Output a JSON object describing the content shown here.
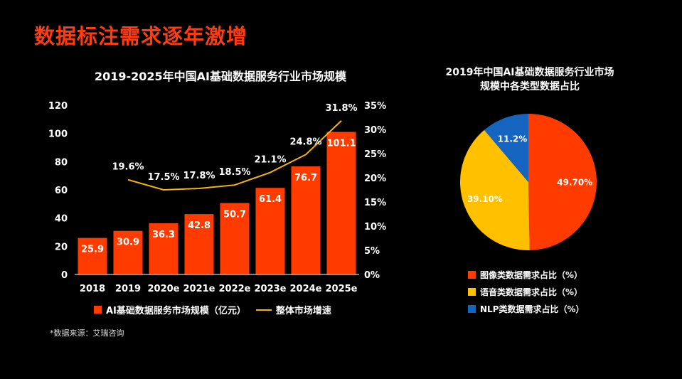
{
  "page": {
    "title": "数据标注需求逐年激增",
    "source_note": "*数据来源：艾瑞咨询",
    "colors": {
      "accent": "#ff3b10",
      "bar": "#ff3b00",
      "line": "#f5b700",
      "blue": "#1565c0"
    }
  },
  "chart_data": [
    {
      "type": "bar",
      "title": "2019-2025年中国AI基础数据服务行业市场规模",
      "categories": [
        "2018",
        "2019",
        "2020e",
        "2021e",
        "2022e",
        "2023e",
        "2024e",
        "2025e"
      ],
      "series": [
        {
          "name": "AI基础数据服务市场规模（亿元）",
          "type": "bar",
          "axis": "left",
          "values": [
            25.9,
            30.9,
            36.3,
            42.8,
            50.7,
            61.4,
            76.7,
            101.1
          ],
          "labels": [
            "25.9",
            "30.9",
            "36.3",
            "42.8",
            "50.7",
            "61.4",
            "76.7",
            "101.1"
          ]
        },
        {
          "name": "整体市场增速",
          "type": "line",
          "axis": "right",
          "values": [
            null,
            19.6,
            17.5,
            17.8,
            18.5,
            21.1,
            24.8,
            31.8
          ],
          "labels": [
            "",
            "19.6%",
            "17.5%",
            "17.8%",
            "18.5%",
            "21.1%",
            "24.8%",
            "31.8%"
          ]
        }
      ],
      "y_left": {
        "range": [
          0,
          120
        ],
        "ticks": [
          "0",
          "20",
          "40",
          "60",
          "80",
          "100",
          "120"
        ],
        "tick_values": [
          0,
          20,
          40,
          60,
          80,
          100,
          120
        ]
      },
      "y_right": {
        "range": [
          0,
          35
        ],
        "ticks": [
          "0%",
          "5%",
          "10%",
          "15%",
          "20%",
          "25%",
          "30%",
          "35%"
        ],
        "tick_values": [
          0,
          5,
          10,
          15,
          20,
          25,
          30,
          35
        ]
      },
      "grid": false,
      "legend": {
        "position": "bottom",
        "items": [
          "AI基础数据服务市场规模（亿元）",
          "整体市场增速"
        ]
      }
    },
    {
      "type": "pie",
      "title": "2019年中国AI基础数据服务行业市场规模中各类型数据占比",
      "title_lines": [
        "2019年中国AI基础数据服务行业市场",
        "规模中各类型数据占比"
      ],
      "slices": [
        {
          "name": "图像类数据需求占比（%）",
          "value": 49.7,
          "label": "49.70%",
          "color": "#ff3b00"
        },
        {
          "name": "语音类数据需求占比（%）",
          "value": 39.1,
          "label": "39.10%",
          "color": "#ffc000"
        },
        {
          "name": "NLP类数据需求占比（%）",
          "value": 11.2,
          "label": "11.2%",
          "color": "#1565c0"
        }
      ],
      "legend": {
        "position": "bottom"
      }
    }
  ]
}
